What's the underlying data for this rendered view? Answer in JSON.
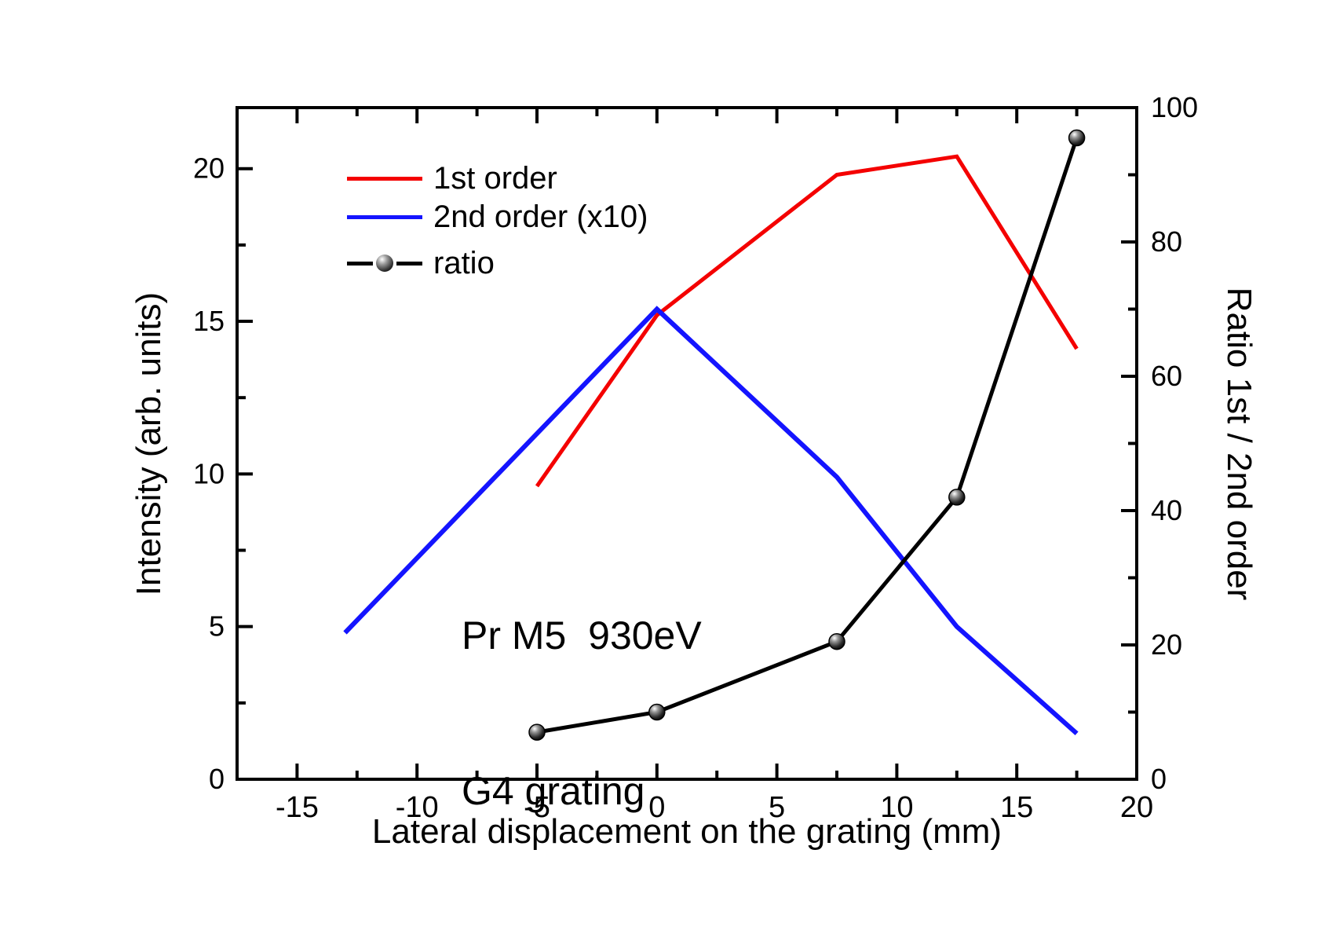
{
  "chart_data": {
    "type": "line",
    "title": "",
    "annotation": {
      "line1": "Pr M5  930eV",
      "line2": "G4 grating"
    },
    "x_axis": {
      "label": "Lateral displacement on the grating (mm)",
      "min": -17.5,
      "max": 20,
      "major_ticks": [
        -15,
        -10,
        -5,
        0,
        5,
        10,
        15,
        20
      ],
      "minor_step": 2.5
    },
    "y_left": {
      "label": "Intensity (arb. units)",
      "min": 0,
      "max": 22,
      "major_ticks": [
        0,
        5,
        10,
        15,
        20
      ],
      "minor_step": 2.5
    },
    "y_right": {
      "label": "Ratio 1st / 2nd order",
      "min": 0,
      "max": 100,
      "major_ticks": [
        0,
        20,
        40,
        60,
        80,
        100
      ],
      "minor_step": 10
    },
    "grid": "off",
    "legend_position": "top-left-inside",
    "series": [
      {
        "name": "1st order",
        "axis": "left",
        "color": "#f40000",
        "line_width": 5,
        "marker": "none",
        "points": [
          [
            -5,
            9.6
          ],
          [
            0,
            15.2
          ],
          [
            7.5,
            19.8
          ],
          [
            12.5,
            20.4
          ],
          [
            17.5,
            14.1
          ]
        ]
      },
      {
        "name": "2nd order (x10)",
        "axis": "left",
        "color": "#1414ff",
        "line_width": 6,
        "marker": "none",
        "points": [
          [
            -13,
            4.8
          ],
          [
            0,
            15.4
          ],
          [
            7.5,
            9.9
          ],
          [
            12.5,
            5.0
          ],
          [
            17.5,
            1.5
          ]
        ]
      },
      {
        "name": "ratio",
        "axis": "right",
        "color": "#000000",
        "line_width": 5,
        "marker": "sphere",
        "points": [
          [
            -5,
            7
          ],
          [
            0,
            10
          ],
          [
            7.5,
            20.5
          ],
          [
            12.5,
            42
          ],
          [
            17.5,
            95.5
          ]
        ]
      }
    ]
  }
}
